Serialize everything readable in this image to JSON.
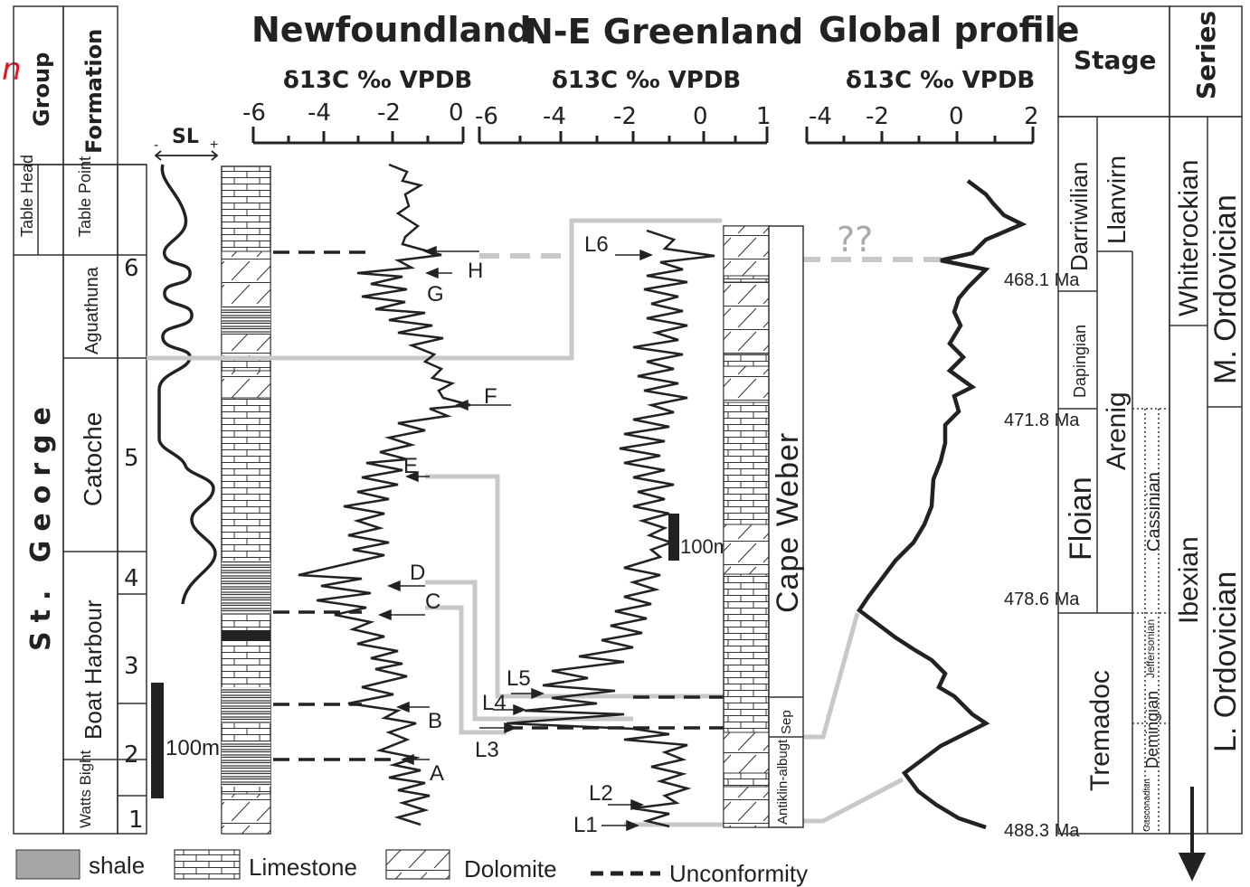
{
  "corner_letter": "n",
  "columns": {
    "newfoundland": "Newfoundland",
    "greenland": "N-E Greenland",
    "global": "Global profile",
    "axis_label": "δ13C ‰ VPDB"
  },
  "left_headers": {
    "group": "Group",
    "formation": "Formation",
    "sl": "SL",
    "minus": "-",
    "plus": "+"
  },
  "group_name": "St. George",
  "formations": [
    "Table Head",
    "Table Point",
    "Aguathuna",
    "Catoche",
    "Boat Harbour",
    "Watts Bight"
  ],
  "sequence_numbers": [
    "6",
    "5",
    "4",
    "3",
    "2",
    "1"
  ],
  "scale_bar_label": "100m",
  "newfoundland_axis_ticks": [
    "-6",
    "-4",
    "-2",
    "0"
  ],
  "greenland_axis_ticks": [
    "-6",
    "-4",
    "-2",
    "0",
    "1"
  ],
  "global_axis_ticks": [
    "-4",
    "-2",
    "0",
    "2"
  ],
  "newfoundland_markers": [
    "H",
    "G",
    "F",
    "E",
    "D",
    "C",
    "B",
    "A"
  ],
  "greenland_markers": [
    "L6",
    "L5",
    "L4",
    "L3",
    "L2",
    "L1"
  ],
  "greenland_formations": {
    "cape_weber": "Cape Weber",
    "sep": "Sep",
    "antiklinalbugt": "Antiklin-albugt"
  },
  "question_marks": "??",
  "ages": [
    "468.1 Ma",
    "471.8 Ma",
    "478.6 Ma",
    "488.3 Ma"
  ],
  "right_headers": {
    "stage": "Stage",
    "series": "Series"
  },
  "stages": [
    "Darriwilian",
    "Dapingian",
    "Floian",
    "Tremadoc"
  ],
  "british_series": [
    "Llanvirn",
    "Arenig"
  ],
  "na_stages": [
    "Cassinian",
    "Jeffersonian",
    "Demingian",
    "Gasconadian"
  ],
  "na_series": [
    "Whiterockian",
    "Ibexian"
  ],
  "series": [
    "M. Ordovician",
    "L. Ordovician"
  ],
  "legend": [
    "shale",
    "Limestone",
    "Dolomite",
    "Unconformity"
  ],
  "colors": {
    "line": "#2b2b2b",
    "correlation": "#c8c8c8",
    "shale": "#a6a6a6",
    "accent": "#e8141c"
  }
}
